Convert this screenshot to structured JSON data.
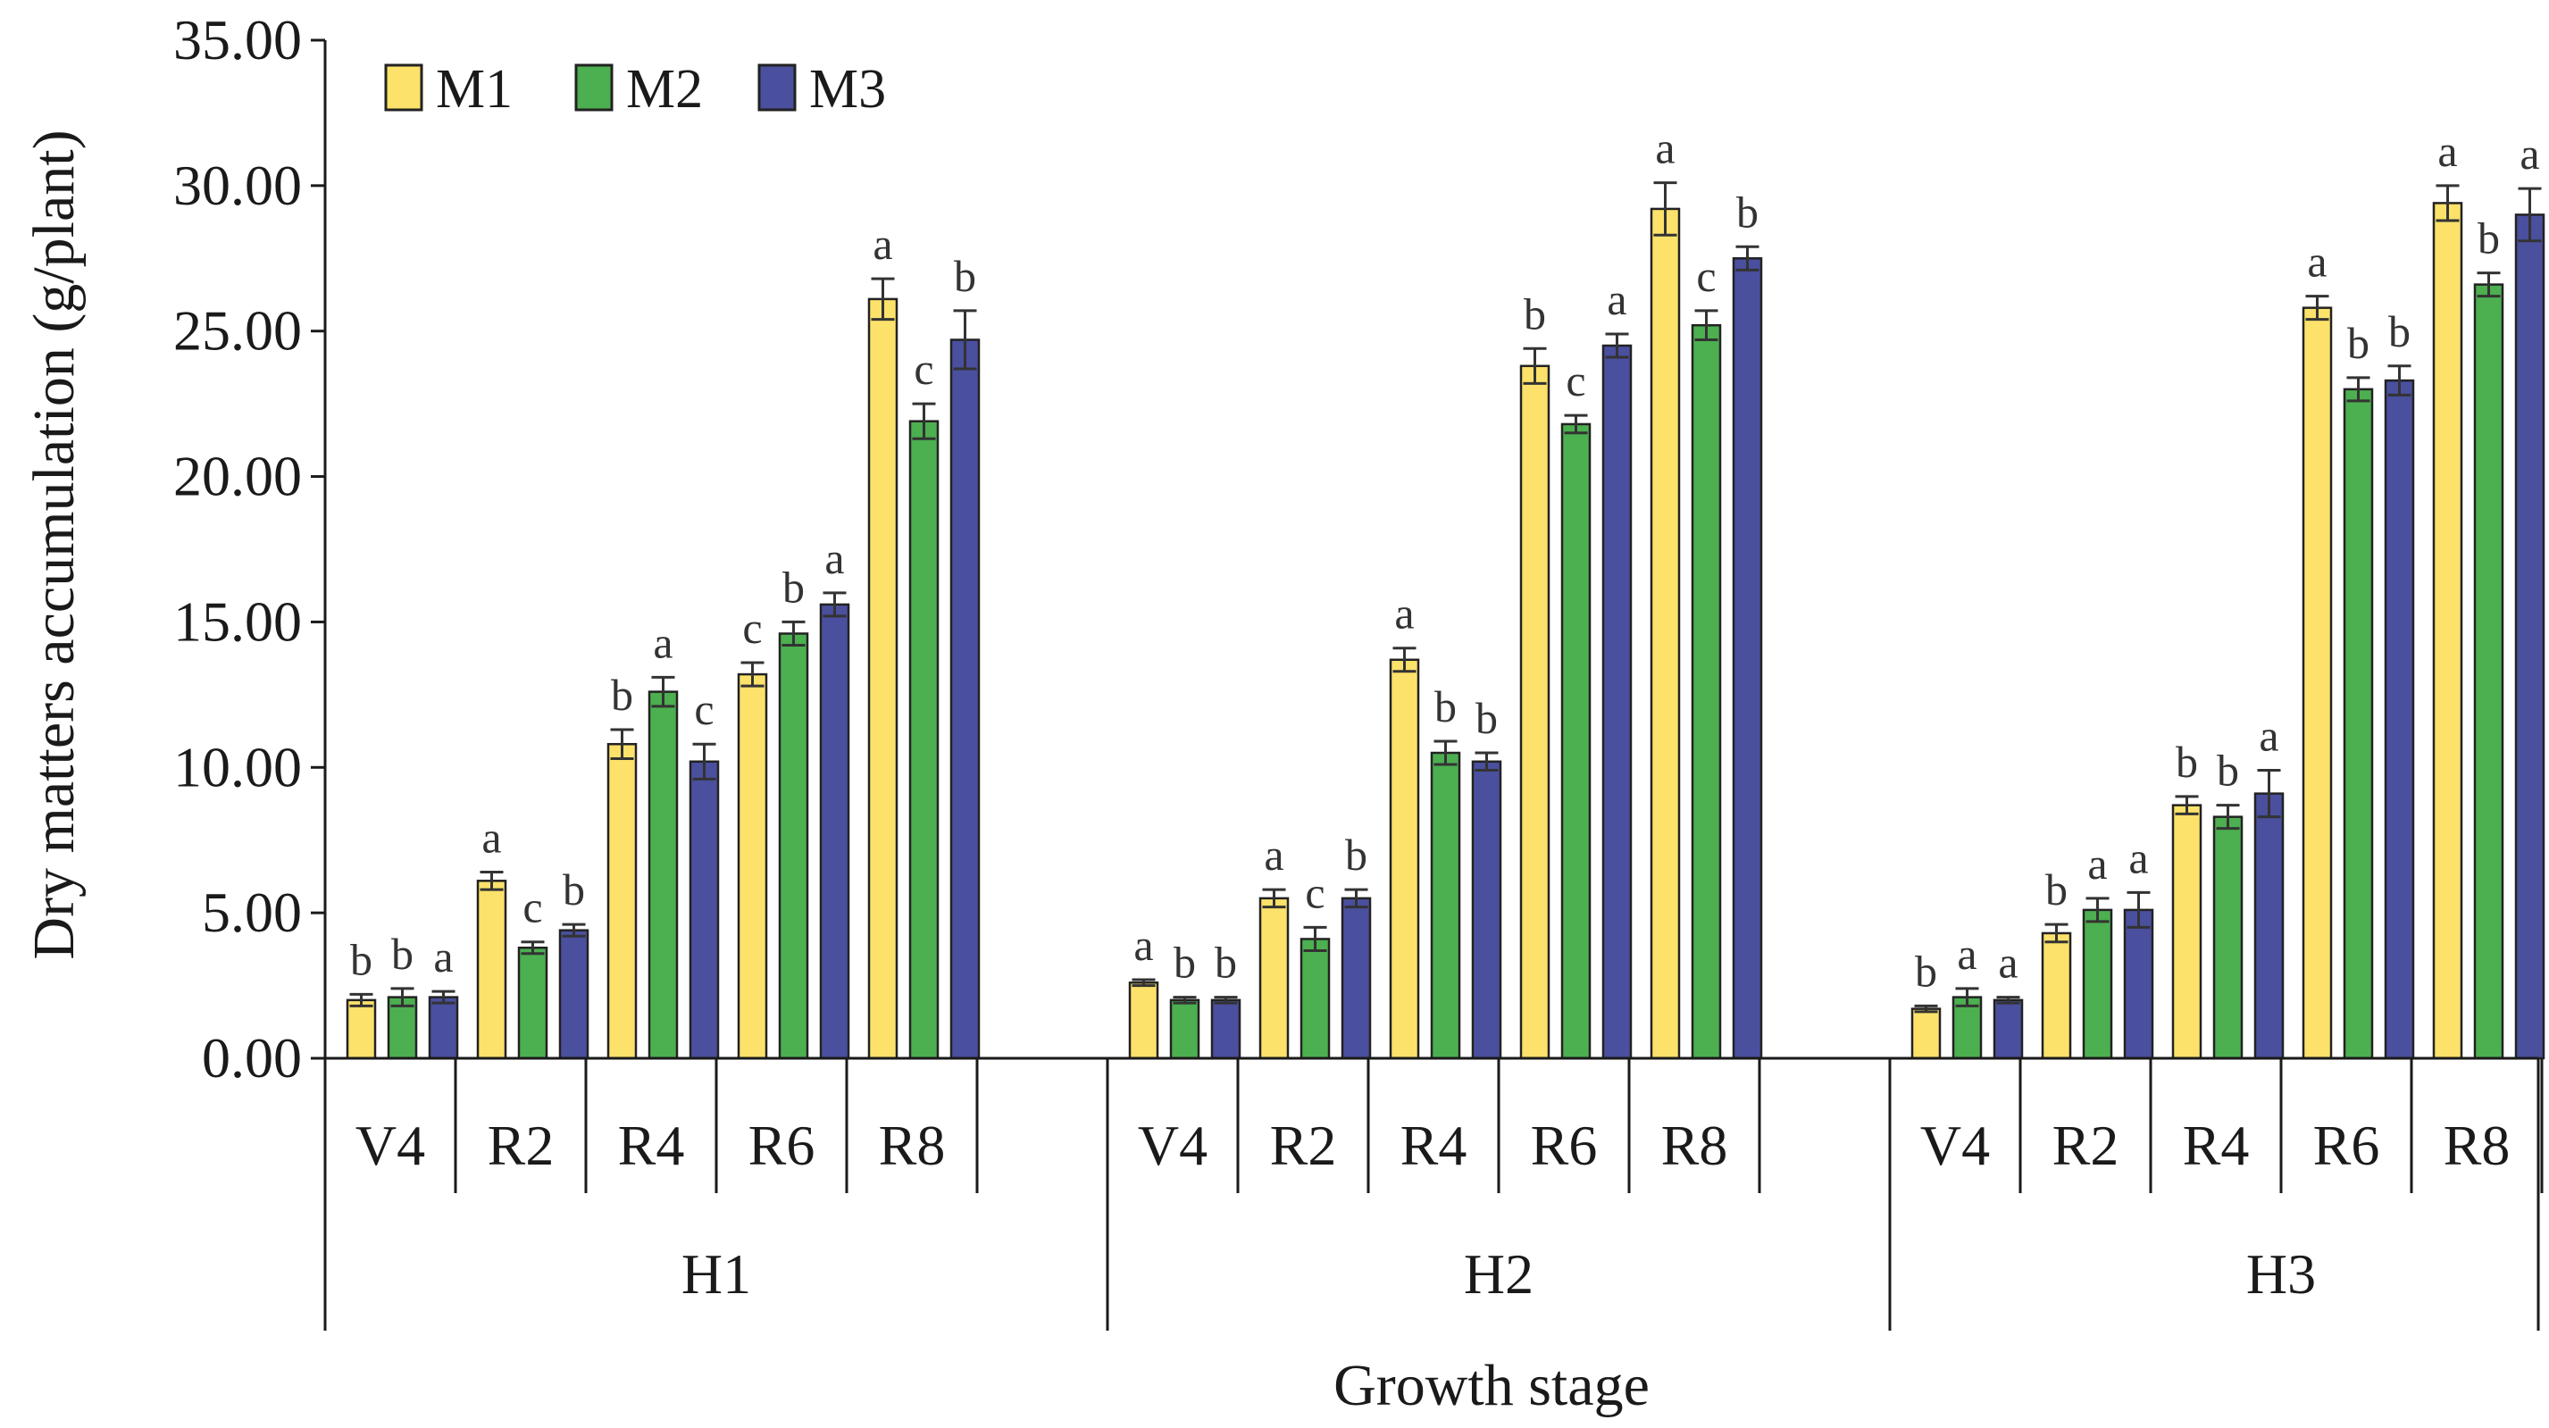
{
  "chart_data": {
    "type": "bar",
    "xlabel": "Growth stage",
    "ylabel": "Dry matters accumulation (g/plant)",
    "ylim": [
      0,
      35
    ],
    "yticks": [
      "0.00",
      "5.00",
      "10.00",
      "15.00",
      "20.00",
      "25.00",
      "30.00",
      "35.00"
    ],
    "legend_position": "top-left",
    "series": [
      {
        "name": "M1",
        "color": "#FCE26B"
      },
      {
        "name": "M2",
        "color": "#4CAF50"
      },
      {
        "name": "M3",
        "color": "#4A4F9E"
      }
    ],
    "groups": [
      {
        "name": "H1",
        "stages": [
          {
            "label": "V4",
            "values": [
              2.0,
              2.1,
              2.1
            ],
            "errors": [
              0.2,
              0.3,
              0.2
            ],
            "sig": [
              "b",
              "b",
              "a"
            ]
          },
          {
            "label": "R2",
            "values": [
              6.1,
              3.8,
              4.4
            ],
            "errors": [
              0.3,
              0.2,
              0.2
            ],
            "sig": [
              "a",
              "c",
              "b"
            ]
          },
          {
            "label": "R4",
            "values": [
              10.8,
              12.6,
              10.2
            ],
            "errors": [
              0.5,
              0.5,
              0.6
            ],
            "sig": [
              "b",
              "a",
              "c"
            ]
          },
          {
            "label": "R6",
            "values": [
              13.2,
              14.6,
              15.6
            ],
            "errors": [
              0.4,
              0.4,
              0.4
            ],
            "sig": [
              "c",
              "b",
              "a"
            ]
          },
          {
            "label": "R8",
            "values": [
              26.1,
              21.9,
              24.7
            ],
            "errors": [
              0.7,
              0.6,
              1.0
            ],
            "sig": [
              "a",
              "c",
              "b"
            ]
          }
        ]
      },
      {
        "name": "H2",
        "stages": [
          {
            "label": "V4",
            "values": [
              2.6,
              2.0,
              2.0
            ],
            "errors": [
              0.1,
              0.1,
              0.1
            ],
            "sig": [
              "a",
              "b",
              "b"
            ]
          },
          {
            "label": "R2",
            "values": [
              5.5,
              4.1,
              5.5
            ],
            "errors": [
              0.3,
              0.4,
              0.3
            ],
            "sig": [
              "a",
              "c",
              "b"
            ]
          },
          {
            "label": "R4",
            "values": [
              13.7,
              10.5,
              10.2
            ],
            "errors": [
              0.4,
              0.4,
              0.3
            ],
            "sig": [
              "a",
              "b",
              "b"
            ]
          },
          {
            "label": "R6",
            "values": [
              23.8,
              21.8,
              24.5
            ],
            "errors": [
              0.6,
              0.3,
              0.4
            ],
            "sig": [
              "b",
              "c",
              "a"
            ]
          },
          {
            "label": "R8",
            "values": [
              29.2,
              25.2,
              27.5
            ],
            "errors": [
              0.9,
              0.5,
              0.4
            ],
            "sig": [
              "a",
              "c",
              "b"
            ]
          }
        ]
      },
      {
        "name": "H3",
        "stages": [
          {
            "label": "V4",
            "values": [
              1.7,
              2.1,
              2.0
            ],
            "errors": [
              0.1,
              0.3,
              0.1
            ],
            "sig": [
              "b",
              "a",
              "a"
            ]
          },
          {
            "label": "R2",
            "values": [
              4.3,
              5.1,
              5.1
            ],
            "errors": [
              0.3,
              0.4,
              0.6
            ],
            "sig": [
              "b",
              "a",
              "a"
            ]
          },
          {
            "label": "R4",
            "values": [
              8.7,
              8.3,
              9.1
            ],
            "errors": [
              0.3,
              0.4,
              0.8
            ],
            "sig": [
              "b",
              "b",
              "a"
            ]
          },
          {
            "label": "R6",
            "values": [
              25.8,
              23.0,
              23.3
            ],
            "errors": [
              0.4,
              0.4,
              0.5
            ],
            "sig": [
              "a",
              "b",
              "b"
            ]
          },
          {
            "label": "R8",
            "values": [
              29.4,
              26.6,
              29.0
            ],
            "errors": [
              0.6,
              0.4,
              0.9
            ],
            "sig": [
              "a",
              "b",
              "a"
            ]
          }
        ]
      }
    ]
  }
}
